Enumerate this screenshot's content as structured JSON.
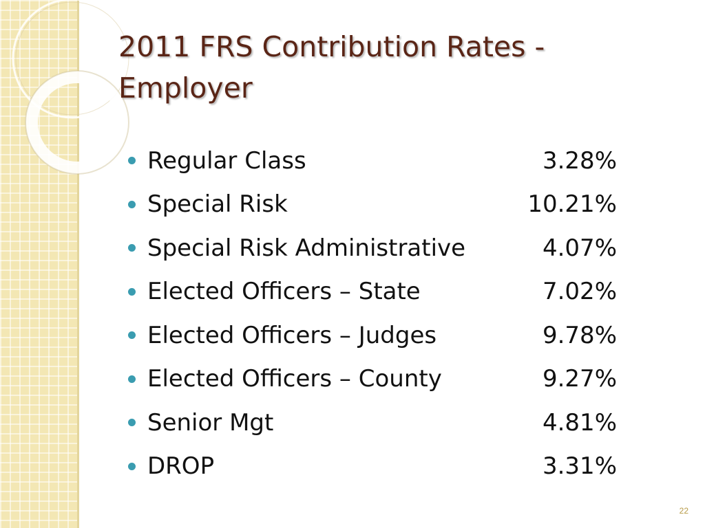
{
  "slide": {
    "title": "2011 FRS Contribution Rates - Employer",
    "page_number": "22",
    "colors": {
      "title": "#5a2516",
      "bullet": "#3a9cb0",
      "side_band": "#f3e7b4",
      "page_number": "#b79a46"
    }
  },
  "rates": [
    {
      "label": "Regular Class",
      "value": "3.28%"
    },
    {
      "label": "Special Risk",
      "value": "10.21%"
    },
    {
      "label": "Special Risk Administrative",
      "value": "4.07%"
    },
    {
      "label": "Elected Officers – State",
      "value": "7.02%"
    },
    {
      "label": "Elected Officers – Judges",
      "value": "9.78%"
    },
    {
      "label": "Elected Officers – County",
      "value": "9.27%"
    },
    {
      "label": "Senior Mgt",
      "value": "4.81%"
    },
    {
      "label": "DROP",
      "value": "3.31%"
    }
  ]
}
